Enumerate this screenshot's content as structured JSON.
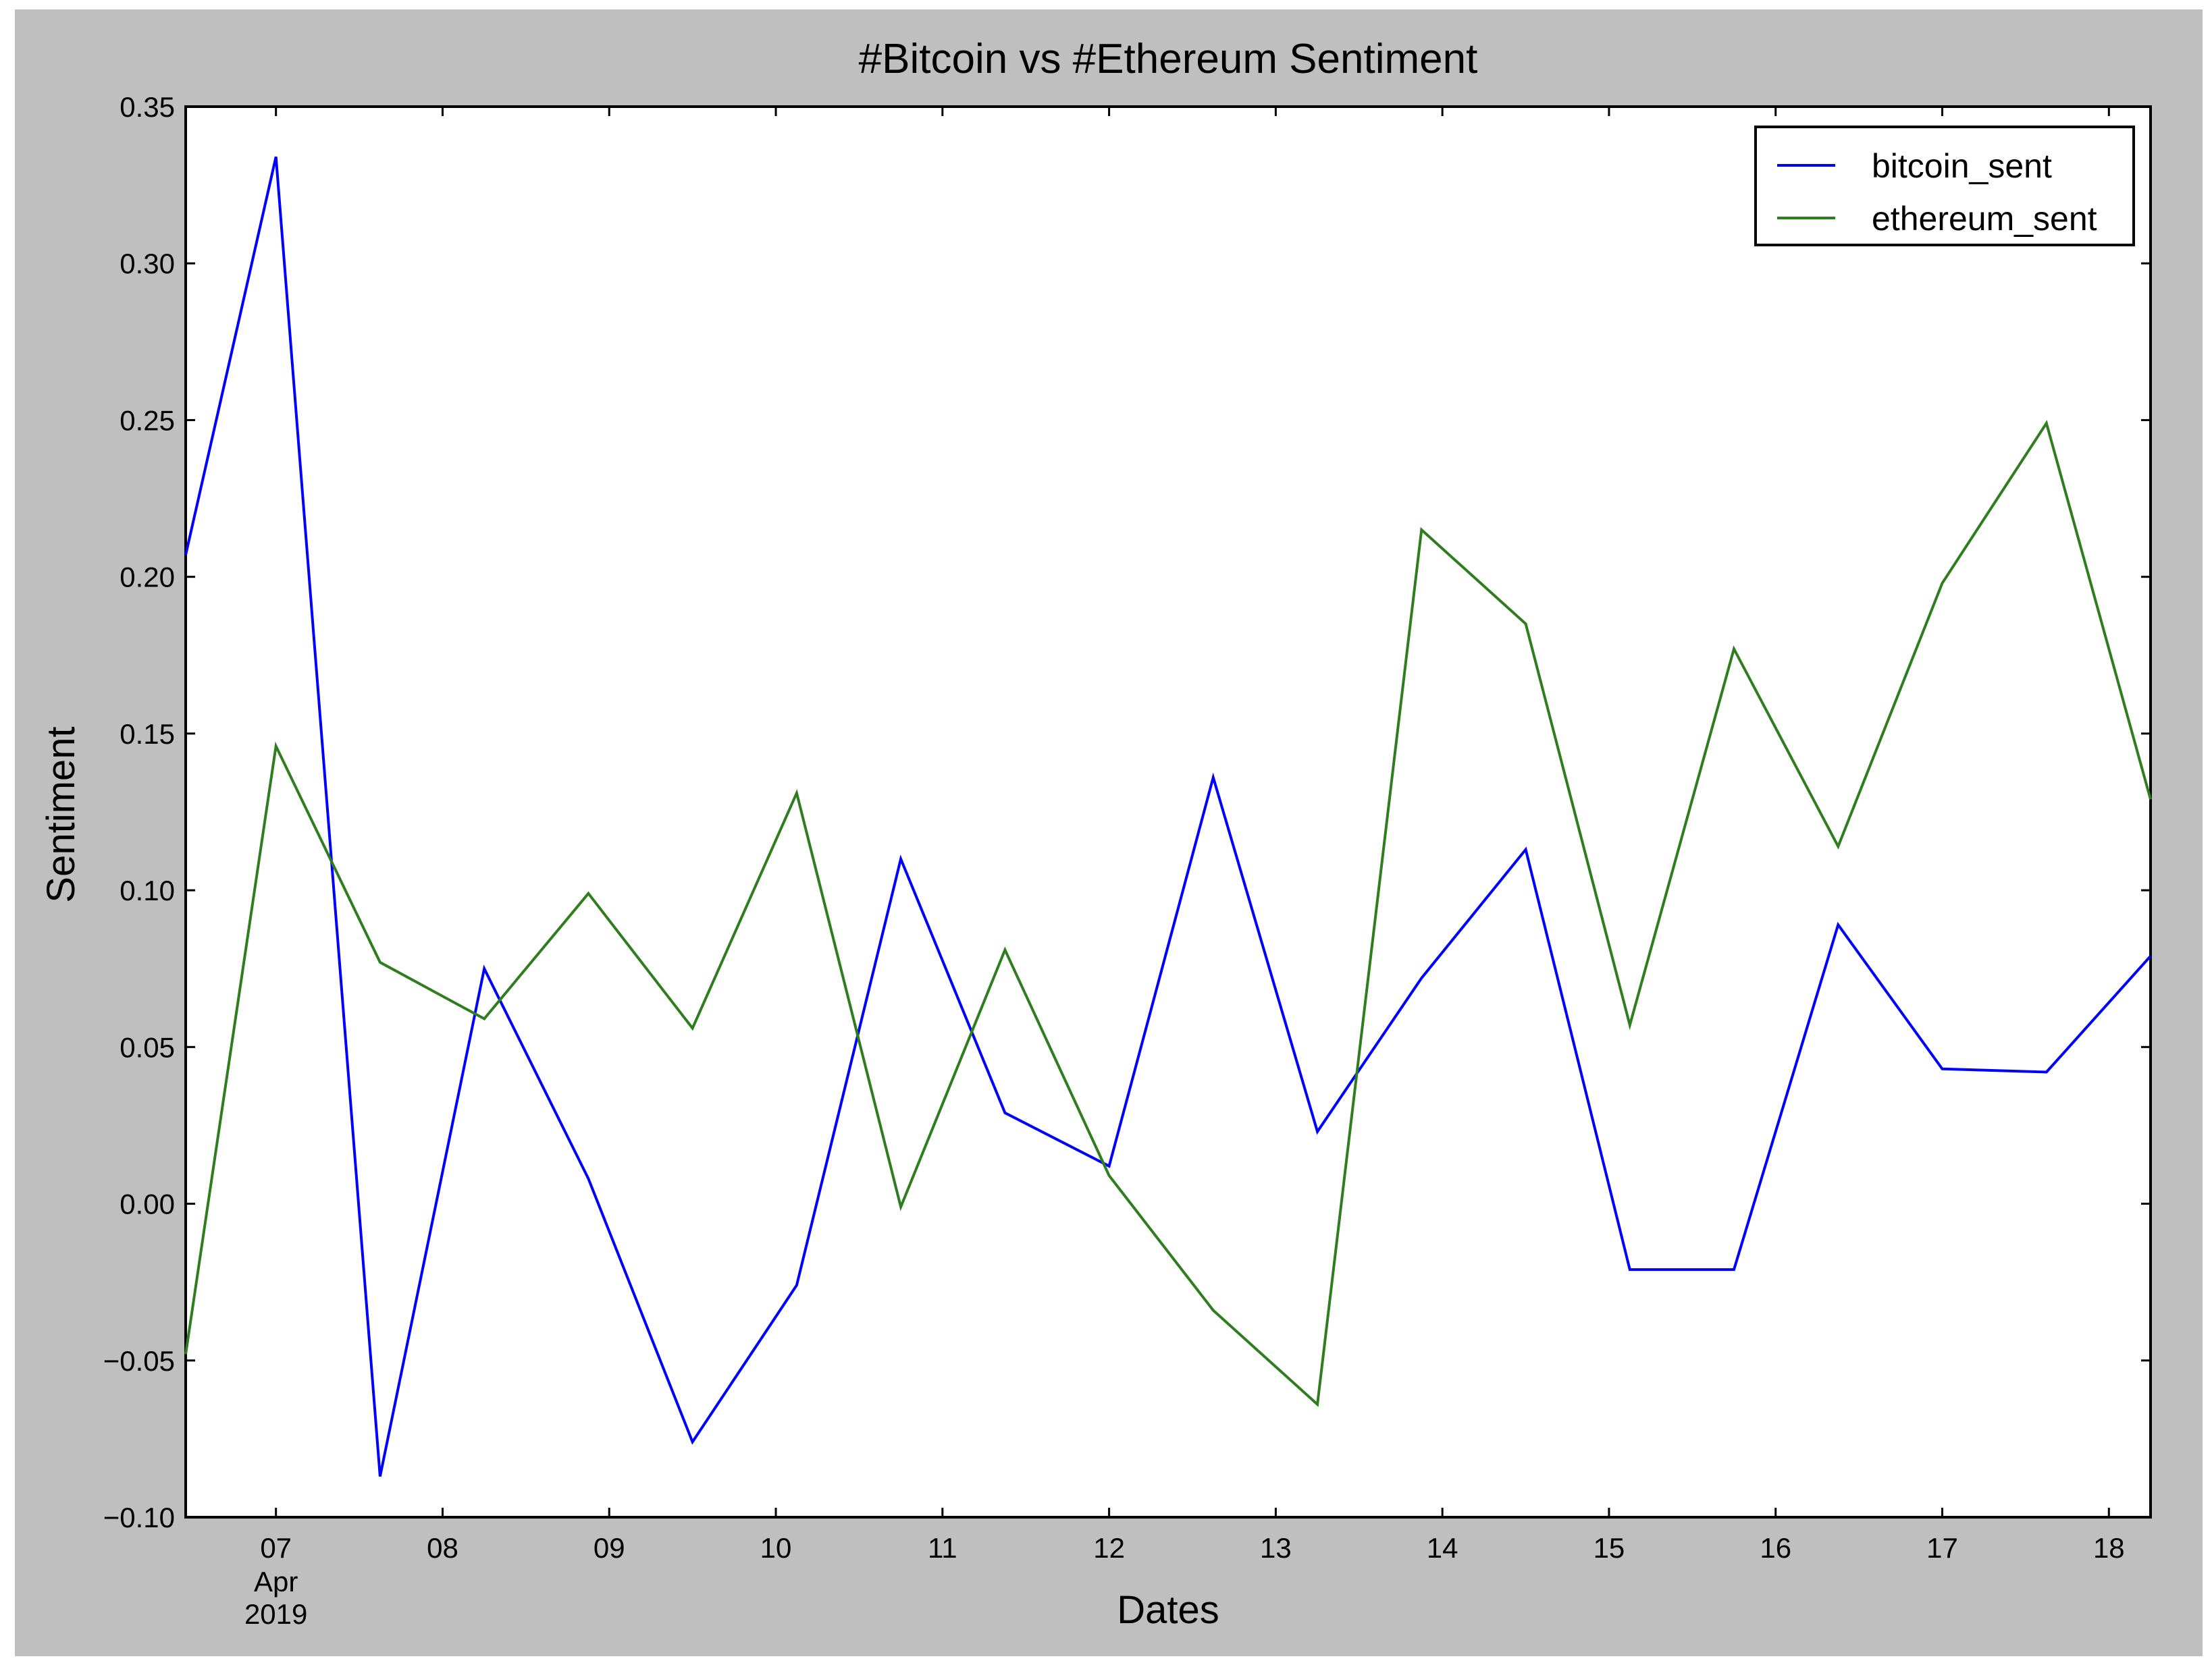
{
  "chart_data": {
    "type": "line",
    "title": "#Bitcoin vs #Ethereum Sentiment",
    "xlabel": "Dates",
    "ylabel": "Sentiment",
    "x": [
      "2019-04-06 11:00",
      "2019-04-07 00:00",
      "2019-04-07 15:00",
      "2019-04-08 06:00",
      "2019-04-08 21:00",
      "2019-04-09 12:00",
      "2019-04-10 03:00",
      "2019-04-10 18:00",
      "2019-04-11 09:00",
      "2019-04-12 00:00",
      "2019-04-12 15:00",
      "2019-04-13 06:00",
      "2019-04-13 21:00",
      "2019-04-14 12:00",
      "2019-04-15 03:00",
      "2019-04-15 18:00",
      "2019-04-16 09:00",
      "2019-04-17 00:00",
      "2019-04-17 15:00",
      "2019-04-18 06:00"
    ],
    "series": [
      {
        "name": "bitcoin_sent",
        "color": "#0000ff",
        "values": [
          0.207,
          0.334,
          -0.087,
          0.075,
          0.008,
          -0.076,
          -0.026,
          0.11,
          0.029,
          0.012,
          0.136,
          0.023,
          0.072,
          0.113,
          -0.021,
          -0.021,
          0.089,
          0.043,
          0.042,
          0.079
        ]
      },
      {
        "name": "ethereum_sent",
        "color": "#2e7d1e",
        "values": [
          -0.048,
          0.146,
          0.077,
          0.059,
          0.099,
          0.056,
          0.131,
          -0.001,
          0.081,
          0.009,
          -0.034,
          -0.064,
          0.215,
          0.185,
          0.057,
          0.177,
          0.114,
          0.198,
          0.249,
          0.129
        ]
      }
    ],
    "xticks": [
      {
        "date": "2019-04-07",
        "label": "07",
        "sub1": "Apr",
        "sub2": "2019"
      },
      {
        "date": "2019-04-08",
        "label": "08"
      },
      {
        "date": "2019-04-09",
        "label": "09"
      },
      {
        "date": "2019-04-10",
        "label": "10"
      },
      {
        "date": "2019-04-11",
        "label": "11"
      },
      {
        "date": "2019-04-12",
        "label": "12"
      },
      {
        "date": "2019-04-13",
        "label": "13"
      },
      {
        "date": "2019-04-14",
        "label": "14"
      },
      {
        "date": "2019-04-15",
        "label": "15"
      },
      {
        "date": "2019-04-16",
        "label": "16"
      },
      {
        "date": "2019-04-17",
        "label": "17"
      },
      {
        "date": "2019-04-18",
        "label": "18"
      }
    ],
    "xlim": [
      "2019-04-06 11:00",
      "2019-04-18 06:00"
    ],
    "yticks": [
      "0.35",
      "0.30",
      "0.25",
      "0.20",
      "0.15",
      "0.10",
      "0.05",
      "0.00",
      "−0.05",
      "−0.10"
    ],
    "ylim": [
      -0.1,
      0.35
    ],
    "grid": false,
    "legend": "top-right"
  }
}
